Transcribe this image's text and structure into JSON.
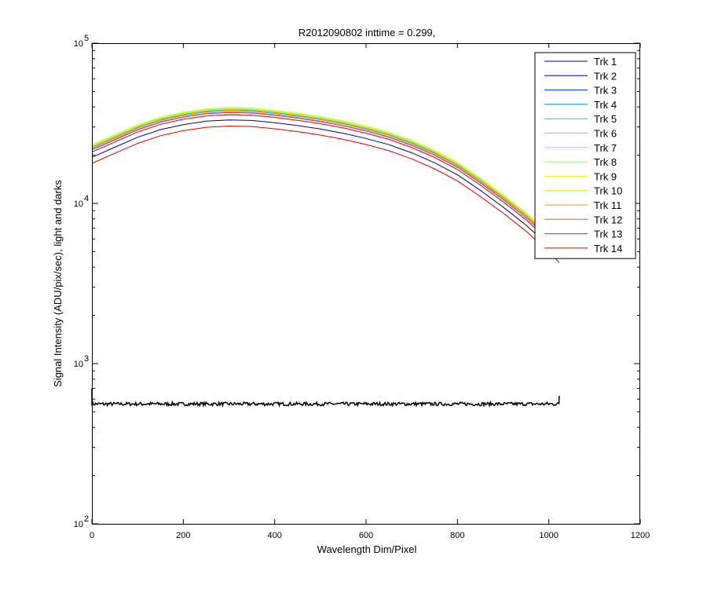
{
  "chart_data": {
    "type": "line",
    "title": "R2012090802 inttime = 0.299,",
    "xlabel": "Wavelength Dim/Pixel",
    "ylabel": "Signal Intensity (ADU/pix/sec), light and darks",
    "xlim": [
      0,
      1200
    ],
    "ylim": [
      100,
      100000
    ],
    "yscale": "log",
    "grid": false,
    "legend_position": "top-right",
    "x_ticks": [
      0,
      200,
      400,
      600,
      800,
      1000,
      1200
    ],
    "y_ticks": [
      {
        "base": "10",
        "exp": "2",
        "value": 100
      },
      {
        "base": "10",
        "exp": "3",
        "value": 1000
      },
      {
        "base": "10",
        "exp": "4",
        "value": 10000
      },
      {
        "base": "10",
        "exp": "5",
        "value": 100000
      }
    ],
    "x": [
      0,
      50,
      100,
      150,
      200,
      250,
      300,
      350,
      400,
      450,
      500,
      550,
      600,
      650,
      700,
      750,
      800,
      850,
      900,
      950,
      1000,
      1023
    ],
    "base_profile": [
      22500,
      26000,
      30000,
      33500,
      36000,
      37800,
      38500,
      38200,
      37000,
      35500,
      33800,
      31800,
      29500,
      27000,
      24000,
      20800,
      17500,
      14000,
      11000,
      8500,
      6300,
      5400
    ],
    "series": [
      {
        "name": "Trk 1",
        "color": "#00008f",
        "scale": 0.862
      },
      {
        "name": "Trk 2",
        "color": "#0000df",
        "scale": 0.93
      },
      {
        "name": "Trk 3",
        "color": "#0030ff",
        "scale": 0.96
      },
      {
        "name": "Trk 4",
        "color": "#0080ff",
        "scale": 0.985
      },
      {
        "name": "Trk 5",
        "color": "#00cfff",
        "scale": 1.0
      },
      {
        "name": "Trk 6",
        "color": "#20ffdf",
        "scale": 1.01
      },
      {
        "name": "Trk 7",
        "color": "#60ffa0",
        "scale": 1.02
      },
      {
        "name": "Trk 8",
        "color": "#a0ff60",
        "scale": 1.03
      },
      {
        "name": "Trk 9",
        "color": "#dfff20",
        "scale": 1.025
      },
      {
        "name": "Trk 10",
        "color": "#ffdf00",
        "scale": 1.01
      },
      {
        "name": "Trk 11",
        "color": "#ff9f00",
        "scale": 0.99
      },
      {
        "name": "Trk 12",
        "color": "#ff6000",
        "scale": 0.965
      },
      {
        "name": "Trk 13",
        "color": "#ff2000",
        "scale": 0.93
      },
      {
        "name": "Trk 14",
        "color": "#df0000",
        "scale": 0.79
      }
    ],
    "dark": {
      "color": "#000000",
      "x_range": [
        0,
        1023
      ],
      "level": 560,
      "start_spike": 700,
      "end_spike": 630
    }
  }
}
